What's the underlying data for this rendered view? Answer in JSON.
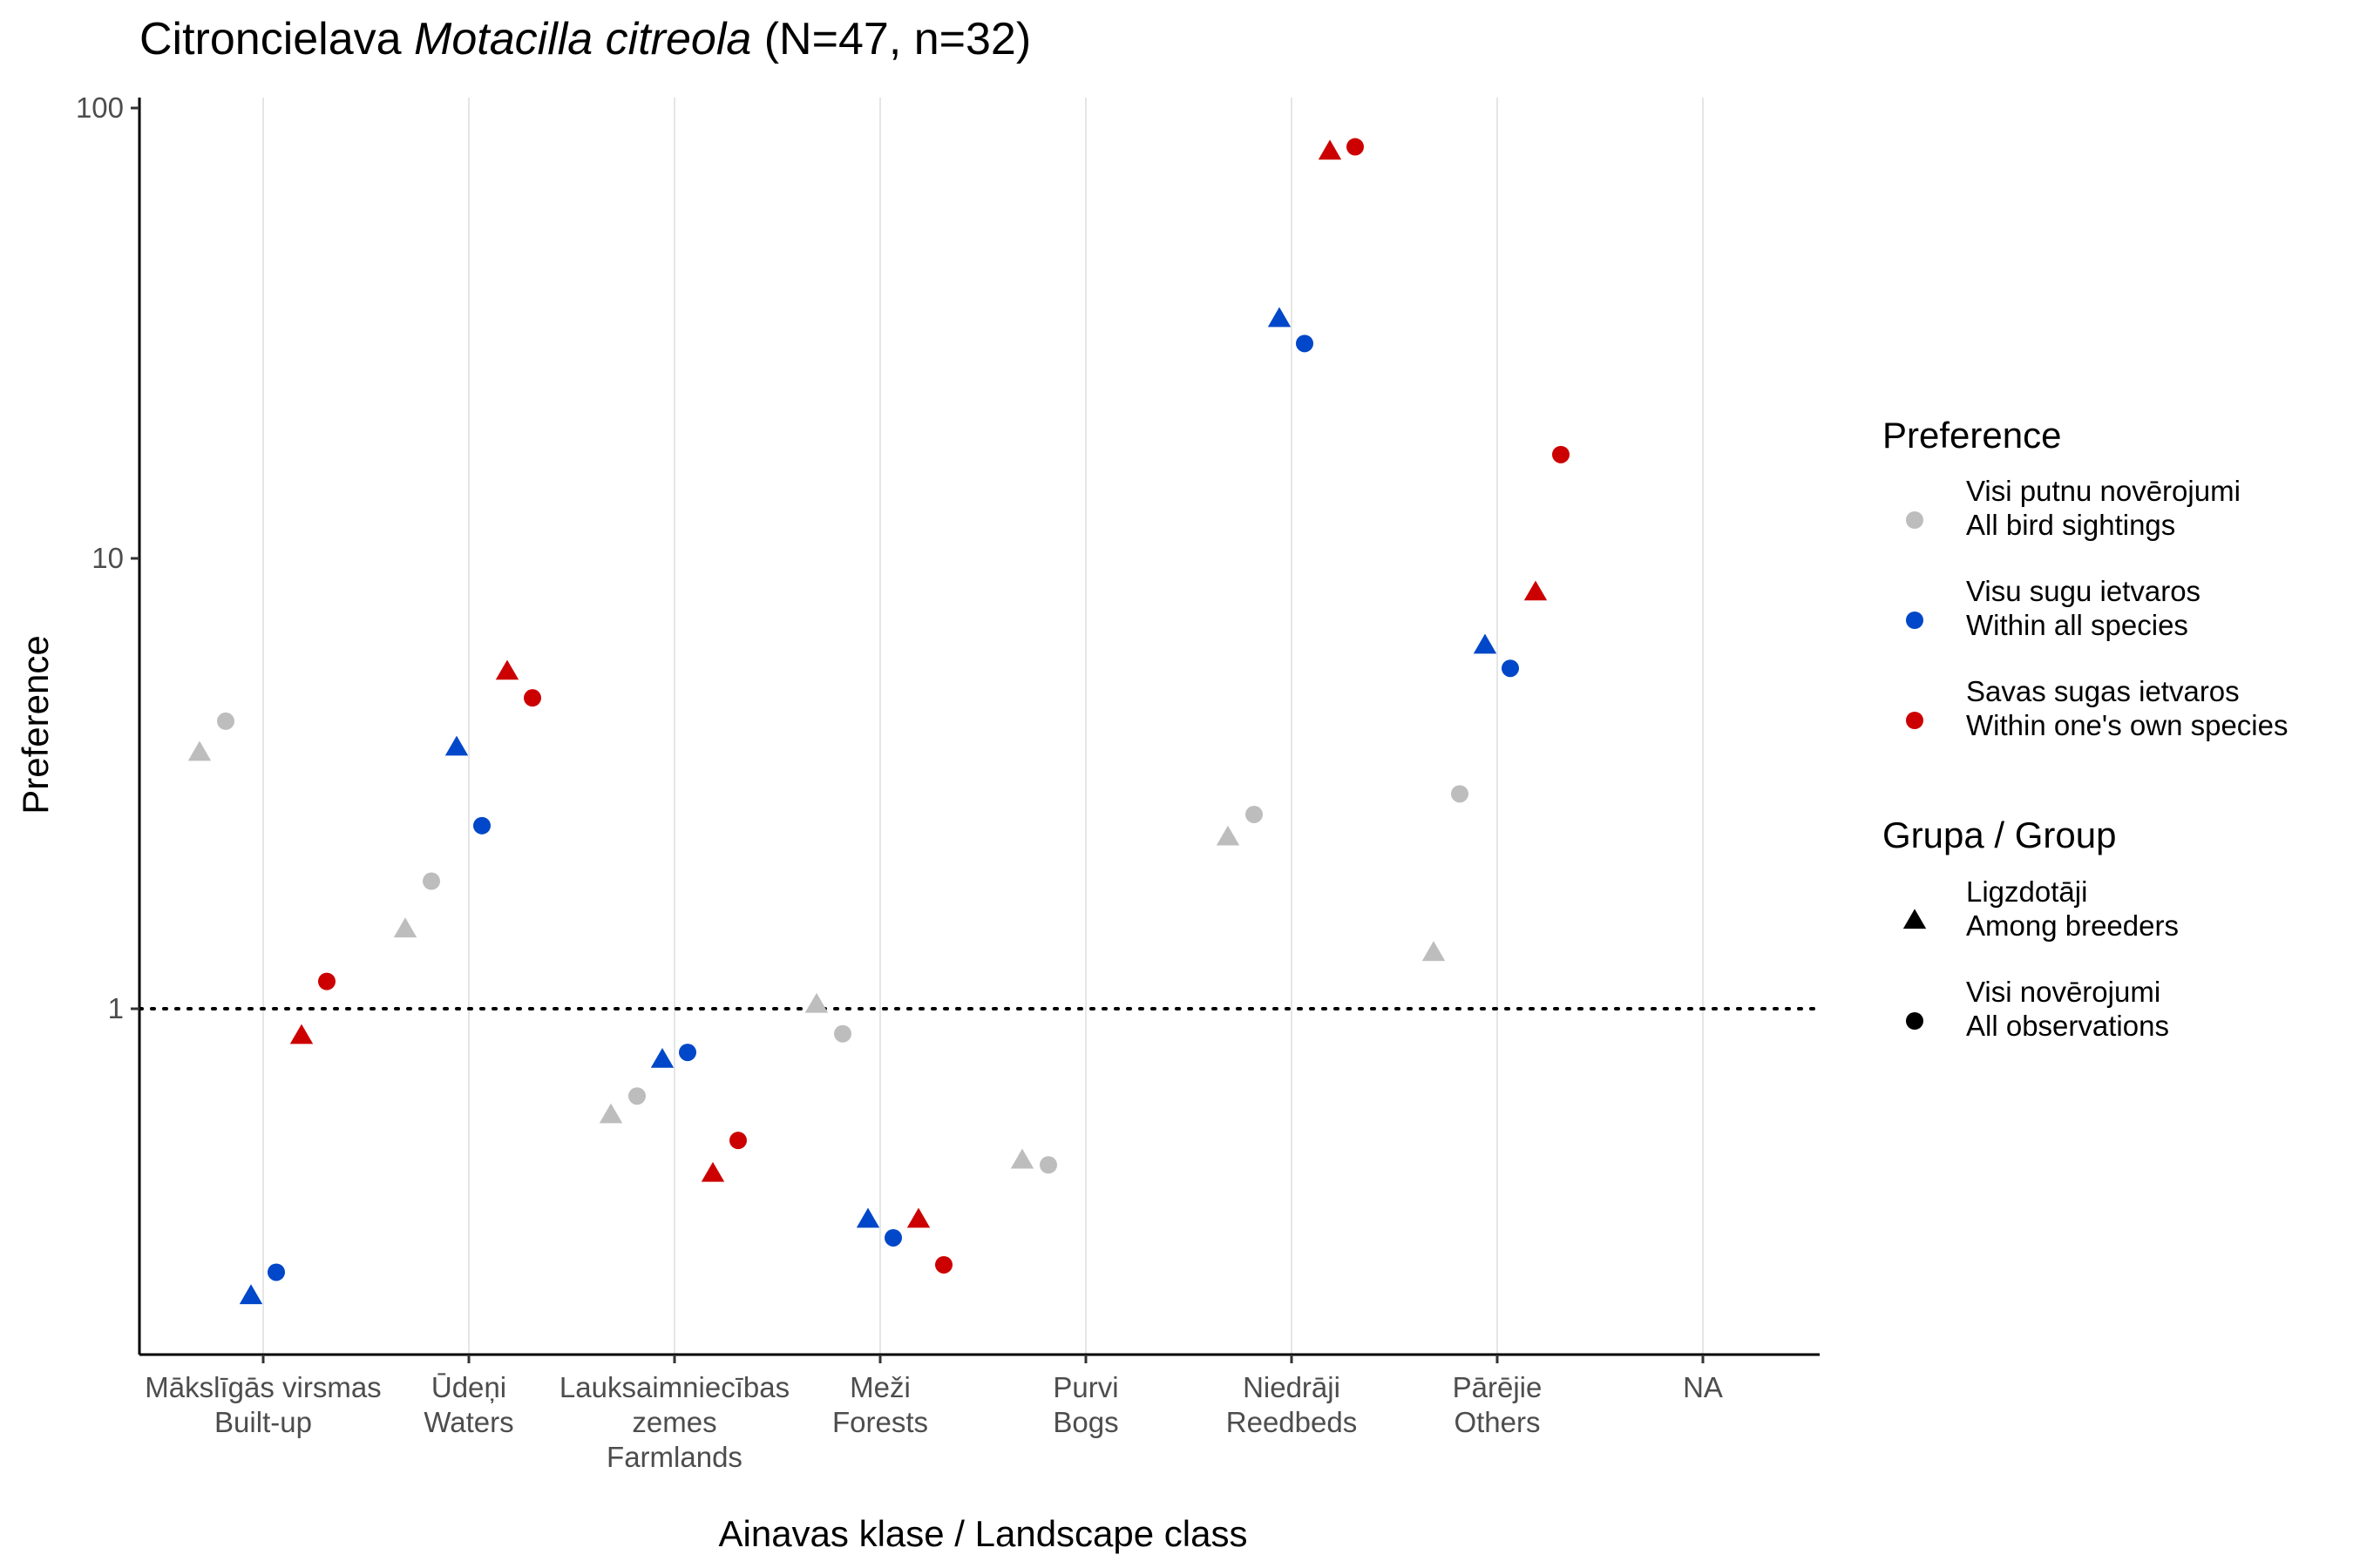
{
  "chart_data": {
    "type": "scatter",
    "title_plain": "Citroncielava ",
    "title_italic": "Motacilla citreola",
    "title_suffix": " (N=47, n=32)",
    "xlabel": "Ainavas klase / Landscape class",
    "ylabel": "Preference",
    "yscale": "log10",
    "ylim": [
      0.18,
      105
    ],
    "yticks": [
      {
        "value": 1,
        "label": "1"
      },
      {
        "value": 10,
        "label": "10"
      },
      {
        "value": 100,
        "label": "100"
      }
    ],
    "reference_line": 1,
    "grid": "vertical-major",
    "categories": [
      {
        "lv": "Mākslīgās virsmas",
        "en": "Built-up"
      },
      {
        "lv": "Ūdeņi",
        "en": "Waters"
      },
      {
        "lv": "Lauksaimniecības",
        "en": "zemes",
        "en2": "Farmlands"
      },
      {
        "lv": "Meži",
        "en": "Forests"
      },
      {
        "lv": "Purvi",
        "en": "Bogs"
      },
      {
        "lv": "Niedrāji",
        "en": "Reedbeds"
      },
      {
        "lv": "Pārējie",
        "en": "Others"
      },
      {
        "lv": "NA",
        "en": ""
      }
    ],
    "series": [
      {
        "preference": "all",
        "group": "breeders",
        "color": "#bdbdbd",
        "shape": "triangle",
        "values": [
          3.7,
          1.5,
          0.58,
          1.02,
          0.46,
          2.4,
          1.33,
          null
        ]
      },
      {
        "preference": "all",
        "group": "all",
        "color": "#bdbdbd",
        "shape": "circle",
        "values": [
          4.35,
          1.92,
          0.64,
          0.88,
          0.45,
          2.7,
          3.0,
          null
        ]
      },
      {
        "preference": "within_all",
        "group": "breeders",
        "color": "#0047c9",
        "shape": "triangle",
        "values": [
          0.23,
          3.8,
          0.77,
          0.34,
          null,
          34.0,
          6.4,
          null
        ]
      },
      {
        "preference": "within_all",
        "group": "all",
        "color": "#0047c9",
        "shape": "circle",
        "values": [
          0.26,
          2.55,
          0.8,
          0.31,
          null,
          30.0,
          5.7,
          null
        ]
      },
      {
        "preference": "within_own",
        "group": "breeders",
        "color": "#cc0000",
        "shape": "triangle",
        "values": [
          0.87,
          5.6,
          0.43,
          0.34,
          null,
          80.0,
          8.4,
          null
        ]
      },
      {
        "preference": "within_own",
        "group": "all",
        "color": "#cc0000",
        "shape": "circle",
        "values": [
          1.15,
          4.9,
          0.51,
          0.27,
          null,
          82.0,
          17.0,
          null
        ]
      }
    ],
    "legend": {
      "placement": "right",
      "preference_title": "Preference",
      "preference_items": [
        {
          "line1": "Visi putnu novērojumi",
          "line2": "All bird sightings",
          "color": "#bdbdbd"
        },
        {
          "line1": "Visu sugu ietvaros",
          "line2": "Within all species",
          "color": "#0047c9"
        },
        {
          "line1": "Savas sugas ietvaros",
          "line2": "Within one's own species",
          "color": "#cc0000"
        }
      ],
      "group_title": "Grupa / Group",
      "group_items": [
        {
          "line1": "Ligzdotāji",
          "line2": "Among breeders",
          "shape": "triangle"
        },
        {
          "line1": "Visi novērojumi",
          "line2": "All observations",
          "shape": "circle"
        }
      ]
    }
  }
}
